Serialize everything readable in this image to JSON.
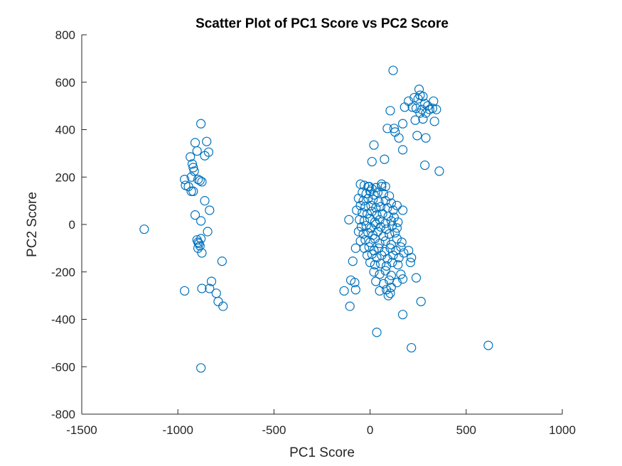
{
  "chart_data": {
    "type": "scatter",
    "title": "Scatter Plot of PC1 Score vs PC2 Score",
    "xlabel": "PC1 Score",
    "ylabel": "PC2 Score",
    "xlim": [
      -1500,
      1000
    ],
    "ylim": [
      -800,
      800
    ],
    "xticks": [
      -1500,
      -1000,
      -500,
      0,
      500,
      1000
    ],
    "yticks": [
      -800,
      -600,
      -400,
      -200,
      0,
      200,
      400,
      600,
      800
    ],
    "grid": false,
    "marker": "circle-open",
    "color": "#0072BD",
    "series": [
      {
        "points": [
          [
            -1175,
            -20
          ],
          [
            -965,
            190
          ],
          [
            -960,
            165
          ],
          [
            -945,
            160
          ],
          [
            -935,
            285
          ],
          [
            -930,
            140
          ],
          [
            -925,
            255
          ],
          [
            -920,
            240
          ],
          [
            -915,
            225
          ],
          [
            -910,
            345
          ],
          [
            -900,
            310
          ],
          [
            -895,
            190
          ],
          [
            -885,
            185
          ],
          [
            -880,
            425
          ],
          [
            -875,
            180
          ],
          [
            -860,
            290
          ],
          [
            -850,
            350
          ],
          [
            -840,
            305
          ],
          [
            -930,
            200
          ],
          [
            -920,
            140
          ],
          [
            -910,
            40
          ],
          [
            -880,
            15
          ],
          [
            -860,
            100
          ],
          [
            -835,
            60
          ],
          [
            -845,
            -30
          ],
          [
            -900,
            -65
          ],
          [
            -895,
            -75
          ],
          [
            -885,
            -90
          ],
          [
            -880,
            -60
          ],
          [
            -875,
            -120
          ],
          [
            -895,
            -100
          ],
          [
            -890,
            -80
          ],
          [
            -770,
            -155
          ],
          [
            -965,
            -280
          ],
          [
            -875,
            -270
          ],
          [
            -835,
            -270
          ],
          [
            -825,
            -240
          ],
          [
            -800,
            -290
          ],
          [
            -790,
            -325
          ],
          [
            -765,
            -345
          ],
          [
            -880,
            -605
          ],
          [
            120,
            650
          ],
          [
            255,
            570
          ],
          [
            260,
            545
          ],
          [
            250,
            530
          ],
          [
            275,
            540
          ],
          [
            285,
            510
          ],
          [
            230,
            535
          ],
          [
            200,
            520
          ],
          [
            180,
            495
          ],
          [
            220,
            495
          ],
          [
            240,
            490
          ],
          [
            270,
            485
          ],
          [
            300,
            500
          ],
          [
            310,
            485
          ],
          [
            325,
            490
          ],
          [
            330,
            520
          ],
          [
            345,
            485
          ],
          [
            290,
            470
          ],
          [
            260,
            470
          ],
          [
            275,
            445
          ],
          [
            235,
            440
          ],
          [
            105,
            480
          ],
          [
            335,
            435
          ],
          [
            90,
            405
          ],
          [
            125,
            405
          ],
          [
            130,
            390
          ],
          [
            170,
            425
          ],
          [
            150,
            365
          ],
          [
            245,
            375
          ],
          [
            290,
            365
          ],
          [
            170,
            315
          ],
          [
            20,
            335
          ],
          [
            75,
            275
          ],
          [
            10,
            265
          ],
          [
            285,
            250
          ],
          [
            360,
            225
          ],
          [
            -50,
            170
          ],
          [
            -30,
            165
          ],
          [
            -10,
            160
          ],
          [
            10,
            150
          ],
          [
            30,
            155
          ],
          [
            60,
            170
          ],
          [
            80,
            160
          ],
          [
            -40,
            135
          ],
          [
            -20,
            130
          ],
          [
            0,
            140
          ],
          [
            20,
            125
          ],
          [
            40,
            135
          ],
          [
            70,
            130
          ],
          [
            100,
            120
          ],
          [
            -60,
            110
          ],
          [
            -35,
            100
          ],
          [
            -10,
            110
          ],
          [
            15,
            105
          ],
          [
            45,
            95
          ],
          [
            80,
            100
          ],
          [
            110,
            90
          ],
          [
            -50,
            80
          ],
          [
            -25,
            75
          ],
          [
            5,
            80
          ],
          [
            30,
            70
          ],
          [
            55,
            75
          ],
          [
            90,
            70
          ],
          [
            120,
            60
          ],
          [
            140,
            80
          ],
          [
            -70,
            60
          ],
          [
            -40,
            50
          ],
          [
            -15,
            45
          ],
          [
            10,
            55
          ],
          [
            35,
            40
          ],
          [
            65,
            45
          ],
          [
            95,
            35
          ],
          [
            125,
            30
          ],
          [
            -55,
            20
          ],
          [
            -30,
            15
          ],
          [
            0,
            25
          ],
          [
            25,
            10
          ],
          [
            50,
            20
          ],
          [
            80,
            5
          ],
          [
            110,
            15
          ],
          [
            145,
            10
          ],
          [
            -45,
            -10
          ],
          [
            -20,
            -5
          ],
          [
            5,
            -15
          ],
          [
            30,
            0
          ],
          [
            55,
            -10
          ],
          [
            85,
            -20
          ],
          [
            115,
            -5
          ],
          [
            140,
            -15
          ],
          [
            -60,
            -30
          ],
          [
            -35,
            -40
          ],
          [
            -10,
            -35
          ],
          [
            15,
            -45
          ],
          [
            40,
            -30
          ],
          [
            70,
            -50
          ],
          [
            100,
            -40
          ],
          [
            130,
            -35
          ],
          [
            -50,
            -70
          ],
          [
            -25,
            -65
          ],
          [
            0,
            -75
          ],
          [
            25,
            -60
          ],
          [
            50,
            -80
          ],
          [
            80,
            -70
          ],
          [
            110,
            -85
          ],
          [
            140,
            -60
          ],
          [
            165,
            -75
          ],
          [
            -30,
            -100
          ],
          [
            -5,
            -95
          ],
          [
            20,
            -110
          ],
          [
            45,
            -100
          ],
          [
            75,
            -115
          ],
          [
            105,
            -100
          ],
          [
            135,
            -110
          ],
          [
            160,
            -95
          ],
          [
            -15,
            -130
          ],
          [
            10,
            -125
          ],
          [
            35,
            -140
          ],
          [
            60,
            -130
          ],
          [
            90,
            -145
          ],
          [
            120,
            -130
          ],
          [
            150,
            -140
          ],
          [
            175,
            -120
          ],
          [
            0,
            -160
          ],
          [
            25,
            -170
          ],
          [
            55,
            -165
          ],
          [
            85,
            -175
          ],
          [
            115,
            -160
          ],
          [
            145,
            -170
          ],
          [
            200,
            -110
          ],
          [
            20,
            -200
          ],
          [
            50,
            -210
          ],
          [
            80,
            -195
          ],
          [
            110,
            -215
          ],
          [
            160,
            -210
          ],
          [
            30,
            -240
          ],
          [
            70,
            -250
          ],
          [
            100,
            -235
          ],
          [
            140,
            -245
          ],
          [
            50,
            -280
          ],
          [
            85,
            -275
          ],
          [
            110,
            -265
          ],
          [
            95,
            -300
          ],
          [
            105,
            -290
          ],
          [
            170,
            -230
          ],
          [
            210,
            -160
          ],
          [
            215,
            -140
          ],
          [
            240,
            -225
          ],
          [
            -90,
            -155
          ],
          [
            -75,
            -100
          ],
          [
            -100,
            -235
          ],
          [
            -80,
            -245
          ],
          [
            -135,
            -280
          ],
          [
            -105,
            -345
          ],
          [
            -75,
            -275
          ],
          [
            -110,
            20
          ],
          [
            170,
            60
          ],
          [
            -5,
            160
          ],
          [
            60,
            160
          ],
          [
            265,
            -325
          ],
          [
            170,
            -380
          ],
          [
            35,
            -455
          ],
          [
            215,
            -520
          ],
          [
            615,
            -510
          ]
        ]
      }
    ]
  }
}
